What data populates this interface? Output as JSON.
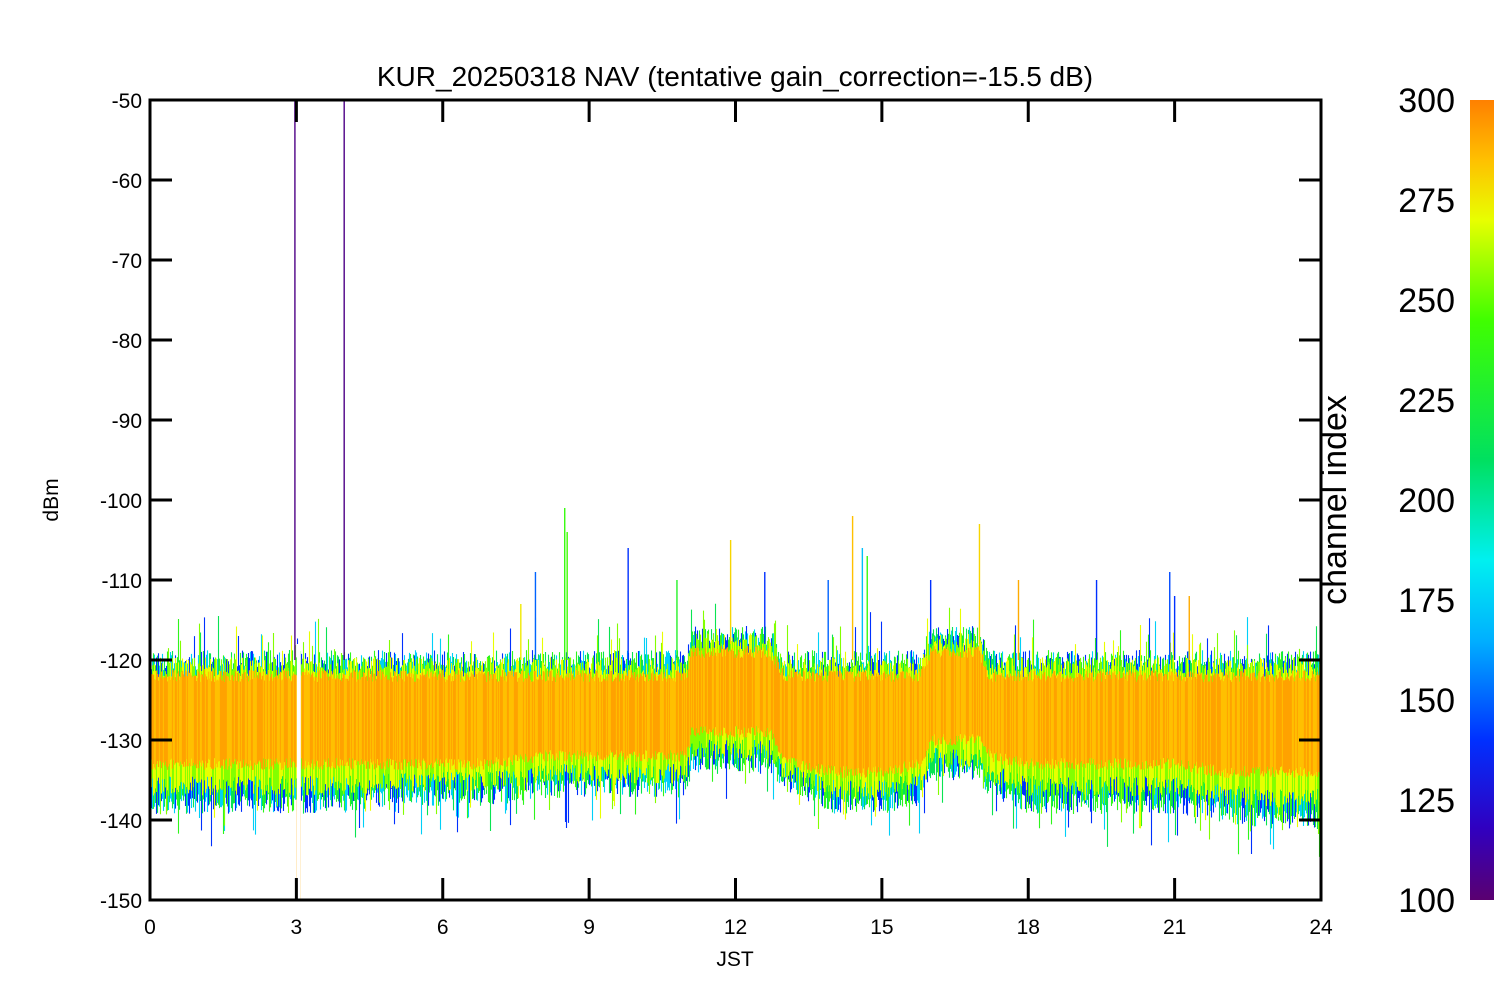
{
  "chart_data": {
    "type": "line",
    "title": "KUR_20250318 NAV (tentative gain_correction=-15.5 dB)",
    "xlabel": "JST",
    "ylabel": "dBm",
    "xlim": [
      0,
      24
    ],
    "ylim": [
      -150,
      -50
    ],
    "x_ticks": [
      "0",
      "3",
      "6",
      "9",
      "12",
      "15",
      "18",
      "21",
      "24"
    ],
    "x_tick_values": [
      0,
      3,
      6,
      9,
      12,
      15,
      18,
      21,
      24
    ],
    "y_ticks": [
      "-50",
      "-60",
      "-70",
      "-80",
      "-90",
      "-100",
      "-110",
      "-120",
      "-130",
      "-140",
      "-150"
    ],
    "y_tick_values": [
      -50,
      -60,
      -70,
      -80,
      -90,
      -100,
      -110,
      -120,
      -130,
      -140,
      -150
    ],
    "series_description": "Received power of channel indices 100–300 versus time; values are shown as a band whose color encodes channel index",
    "band": {
      "x": [
        0,
        1,
        2,
        3,
        4,
        5,
        6,
        7,
        8,
        9,
        10,
        11,
        11.1,
        12,
        12.7,
        13,
        13.3,
        14,
        15,
        15.8,
        16,
        17,
        17.2,
        18,
        19,
        20,
        21,
        22,
        23,
        24
      ],
      "core_upper": [
        -122,
        -122,
        -122,
        -122,
        -122,
        -122,
        -122,
        -122,
        -122,
        -122,
        -122,
        -122,
        -119,
        -119,
        -119,
        -122,
        -122,
        -122,
        -122,
        -122,
        -119,
        -119,
        -122,
        -122,
        -122,
        -122,
        -122,
        -122,
        -122,
        -122
      ],
      "core_lower": [
        -133,
        -133,
        -133,
        -133,
        -133,
        -133,
        -133,
        -133,
        -132,
        -132,
        -132,
        -132,
        -129,
        -129,
        -129,
        -132,
        -133,
        -134,
        -134,
        -133,
        -130,
        -130,
        -132,
        -133,
        -133,
        -133,
        -133,
        -134,
        -134,
        -134
      ],
      "outer_upper": [
        -120,
        -120,
        -120,
        -120,
        -120,
        -120,
        -120,
        -120,
        -120,
        -120,
        -120,
        -120,
        -117,
        -117,
        -117,
        -120,
        -120,
        -120,
        -120,
        -120,
        -117,
        -117,
        -120,
        -120,
        -120,
        -120,
        -120,
        -120,
        -120,
        -120
      ],
      "outer_lower": [
        -138,
        -138,
        -138,
        -138,
        -138,
        -137,
        -137,
        -137,
        -136,
        -136,
        -136,
        -136,
        -133,
        -133,
        -133,
        -135,
        -136,
        -138,
        -138,
        -137,
        -134,
        -134,
        -136,
        -138,
        -138,
        -138,
        -138,
        -139,
        -140,
        -140
      ]
    },
    "gaps": [
      {
        "x": 3.05
      }
    ],
    "spikes": [
      {
        "x": 2.97,
        "y_top": -50,
        "y_bottom": -120,
        "channel": 105
      },
      {
        "x": 3.98,
        "y_top": -50,
        "y_bottom": -120,
        "channel": 105
      },
      {
        "x": 3.02,
        "y_top": -135,
        "y_bottom": -150,
        "channel": 290
      },
      {
        "x": 3.08,
        "y_top": -135,
        "y_bottom": -150,
        "channel": 290
      },
      {
        "x": 7.6,
        "y_top": -113,
        "y_bottom": -120,
        "channel": 275
      },
      {
        "x": 7.9,
        "y_top": -109,
        "y_bottom": -120,
        "channel": 150
      },
      {
        "x": 8.5,
        "y_top": -101,
        "y_bottom": -120,
        "channel": 240
      },
      {
        "x": 8.55,
        "y_top": -104,
        "y_bottom": -120,
        "channel": 245
      },
      {
        "x": 9.8,
        "y_top": -106,
        "y_bottom": -120,
        "channel": 140
      },
      {
        "x": 10.8,
        "y_top": -110,
        "y_bottom": -120,
        "channel": 230
      },
      {
        "x": 11.9,
        "y_top": -105,
        "y_bottom": -118,
        "channel": 280
      },
      {
        "x": 12.6,
        "y_top": -109,
        "y_bottom": -118,
        "channel": 140
      },
      {
        "x": 13.9,
        "y_top": -110,
        "y_bottom": -120,
        "channel": 150
      },
      {
        "x": 14.4,
        "y_top": -102,
        "y_bottom": -120,
        "channel": 285
      },
      {
        "x": 14.6,
        "y_top": -106,
        "y_bottom": -120,
        "channel": 170
      },
      {
        "x": 14.7,
        "y_top": -107,
        "y_bottom": -120,
        "channel": 240
      },
      {
        "x": 16.0,
        "y_top": -110,
        "y_bottom": -118,
        "channel": 140
      },
      {
        "x": 17.0,
        "y_top": -103,
        "y_bottom": -118,
        "channel": 280
      },
      {
        "x": 17.8,
        "y_top": -110,
        "y_bottom": -120,
        "channel": 290
      },
      {
        "x": 19.4,
        "y_top": -110,
        "y_bottom": -120,
        "channel": 140
      },
      {
        "x": 20.9,
        "y_top": -109,
        "y_bottom": -120,
        "channel": 145
      },
      {
        "x": 21.0,
        "y_top": -112,
        "y_bottom": -120,
        "channel": 140
      },
      {
        "x": 21.3,
        "y_top": -112,
        "y_bottom": -120,
        "channel": 290
      }
    ],
    "colorbar": {
      "label": "channel index",
      "range": [
        100,
        300
      ],
      "ticks": [
        "300",
        "275",
        "250",
        "225",
        "200",
        "175",
        "150",
        "125",
        "100"
      ],
      "tick_values": [
        300,
        275,
        250,
        225,
        200,
        175,
        150,
        125,
        100
      ],
      "colors": [
        "#5a0070",
        "#3000c0",
        "#0030ff",
        "#00b0ff",
        "#00f0f0",
        "#00e060",
        "#40ff00",
        "#e8ff00",
        "#ffc000",
        "#ff8000"
      ],
      "color_stops": [
        100,
        118,
        140,
        165,
        185,
        210,
        245,
        270,
        285,
        300
      ]
    },
    "dominant_color": "#ff8a00",
    "grid": false
  }
}
